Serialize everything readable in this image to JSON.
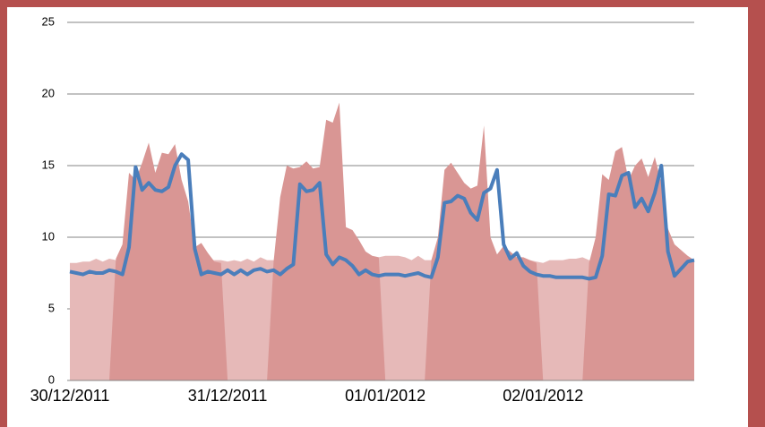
{
  "chart_data": {
    "type": "area",
    "categories": [
      "30/12/2011",
      null,
      null,
      null,
      null,
      null,
      null,
      null,
      null,
      null,
      null,
      null,
      null,
      null,
      null,
      null,
      null,
      null,
      null,
      null,
      null,
      null,
      null,
      null,
      "31/12/2011",
      null,
      null,
      null,
      null,
      null,
      null,
      null,
      null,
      null,
      null,
      null,
      null,
      null,
      null,
      null,
      null,
      null,
      null,
      null,
      null,
      null,
      null,
      null,
      "01/01/2012",
      null,
      null,
      null,
      null,
      null,
      null,
      null,
      null,
      null,
      null,
      null,
      null,
      null,
      null,
      null,
      null,
      null,
      null,
      null,
      null,
      null,
      null,
      null,
      "02/01/2012",
      null,
      null,
      null,
      null,
      null,
      null,
      null,
      null,
      null,
      null,
      null,
      null,
      null,
      null,
      null,
      null,
      null,
      null,
      null,
      null,
      null,
      null,
      null
    ],
    "series": [
      {
        "color": "#e6b9b8",
        "kind": "area",
        "values": [
          8.2,
          8.2,
          8.3,
          8.3,
          8.5,
          8.3,
          8.5,
          8.4,
          8.4,
          8.4,
          8.4,
          8.4,
          8.4,
          8.4,
          8.4,
          8.4,
          8.4,
          8.4,
          8.4,
          8.4,
          8.4,
          8.4,
          8.4,
          8.4,
          8.3,
          8.4,
          8.3,
          8.5,
          8.3,
          8.6,
          8.4,
          8.4,
          8.4,
          8.4,
          8.4,
          8.4,
          8.4,
          8.4,
          8.4,
          8.4,
          8.4,
          8.4,
          8.4,
          8.4,
          8.4,
          8.4,
          8.4,
          8.6,
          8.7,
          8.7,
          8.7,
          8.6,
          8.4,
          8.7,
          8.4,
          8.4,
          8.4,
          8.4,
          8.4,
          8.4,
          8.4,
          8.4,
          8.4,
          8.4,
          8.4,
          8.4,
          8.4,
          8.4,
          8.4,
          8.4,
          8.4,
          8.3,
          8.2,
          8.4,
          8.4,
          8.4,
          8.5,
          8.5,
          8.6,
          8.4,
          8.4,
          8.4,
          8.4,
          8.4,
          8.4,
          8.4,
          8.4,
          8.4,
          8.4,
          8.4,
          8.4,
          8.4,
          8.4,
          8.4,
          8.4,
          8.4
        ]
      },
      {
        "color": "#d99694",
        "kind": "area",
        "values": [
          0,
          0,
          0,
          0,
          0,
          0,
          0,
          8.5,
          9.5,
          14.5,
          14,
          15.2,
          16.6,
          14.5,
          15.9,
          15.8,
          16.5,
          14,
          12.5,
          9.3,
          9.6,
          8.9,
          8.3,
          8.2,
          0,
          0,
          0,
          0,
          0,
          0,
          0,
          8.3,
          12.8,
          15,
          14.8,
          14.9,
          15.3,
          14.8,
          14.9,
          18.2,
          18,
          19.4,
          10.7,
          10.5,
          9.8,
          9,
          8.7,
          8.6,
          0,
          0,
          0,
          0,
          0,
          0,
          0,
          8.4,
          10,
          14.7,
          15.2,
          14.5,
          13.8,
          13.4,
          13.6,
          17.8,
          10,
          8.8,
          9.4,
          9,
          8.6,
          8.6,
          8.4,
          8.2,
          0,
          0,
          0,
          0,
          0,
          0,
          0,
          8.2,
          10,
          14.4,
          14,
          16,
          16.3,
          14,
          15,
          15.5,
          14.2,
          15.6,
          13.8,
          10.6,
          9.5,
          9.1,
          8.7,
          8.4
        ]
      },
      {
        "color": "#4a7ebb",
        "kind": "line",
        "values": [
          7.6,
          7.5,
          7.4,
          7.6,
          7.5,
          7.5,
          7.7,
          7.6,
          7.4,
          9.3,
          14.9,
          13.3,
          13.8,
          13.3,
          13.2,
          13.5,
          15,
          15.8,
          15.4,
          9.2,
          7.4,
          7.6,
          7.5,
          7.4,
          7.7,
          7.4,
          7.7,
          7.4,
          7.7,
          7.8,
          7.6,
          7.7,
          7.4,
          7.8,
          8.1,
          13.7,
          13.2,
          13.3,
          13.8,
          8.8,
          8.1,
          8.6,
          8.4,
          8,
          7.4,
          7.7,
          7.4,
          7.3,
          7.4,
          7.4,
          7.4,
          7.3,
          7.4,
          7.5,
          7.3,
          7.2,
          8.6,
          12.4,
          12.5,
          12.9,
          12.7,
          11.7,
          11.2,
          13.1,
          13.4,
          14.7,
          9.5,
          8.5,
          8.9,
          8,
          7.6,
          7.4,
          7.3,
          7.3,
          7.2,
          7.2,
          7.2,
          7.2,
          7.2,
          7.1,
          7.2,
          8.7,
          13,
          12.9,
          14.3,
          14.5,
          12.1,
          12.7,
          11.8,
          13.1,
          15,
          9,
          7.3,
          7.8,
          8.3,
          8.4
        ]
      }
    ],
    "ylim": [
      0,
      25
    ],
    "yticks": [
      0,
      5,
      10,
      15,
      20,
      25
    ],
    "grid": true
  }
}
